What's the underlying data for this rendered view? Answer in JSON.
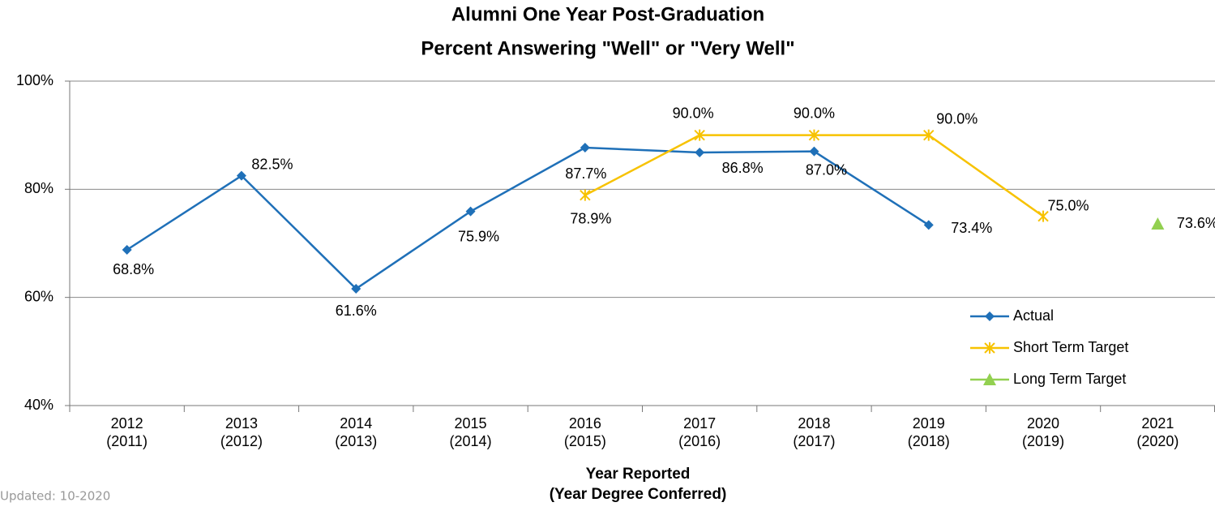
{
  "chart_data": {
    "type": "line",
    "title": [
      "Alumni One Year Post-Graduation",
      "Percent Answering \"Well\" or \"Very Well\""
    ],
    "x_label": [
      "Year Reported",
      "(Year Degree Conferred)"
    ],
    "note": "Updated: 10-2020",
    "categories": [
      [
        "2012",
        "(2011)"
      ],
      [
        "2013",
        "(2012)"
      ],
      [
        "2014",
        "(2013)"
      ],
      [
        "2015",
        "(2014)"
      ],
      [
        "2016",
        "(2015)"
      ],
      [
        "2017",
        "(2016)"
      ],
      [
        "2018",
        "(2017)"
      ],
      [
        "2019",
        "(2018)"
      ],
      [
        "2020",
        "(2019)"
      ],
      [
        "2021",
        "(2020)"
      ]
    ],
    "ylim": [
      40,
      100
    ],
    "yticks": [
      {
        "value": 40,
        "label": "40%"
      },
      {
        "value": 60,
        "label": "60%"
      },
      {
        "value": 80,
        "label": "80%"
      },
      {
        "value": 100,
        "label": "100%"
      }
    ],
    "grid": true,
    "legend": "lower right",
    "series": [
      {
        "name": "Actual",
        "color": "#1f70b8",
        "marker": "diamond",
        "values": [
          68.8,
          82.5,
          61.6,
          75.9,
          87.7,
          86.8,
          87.0,
          73.4,
          null,
          null
        ],
        "value_labels": [
          "68.8%",
          "82.5%",
          "61.6%",
          "75.9%",
          "87.7%",
          "86.8%",
          "87.0%",
          "73.4%",
          null,
          null
        ]
      },
      {
        "name": "Short Term Target",
        "color": "#f7c200",
        "marker": "star",
        "values": [
          null,
          null,
          null,
          null,
          78.9,
          90.0,
          90.0,
          90.0,
          75.0,
          null
        ],
        "value_labels": [
          null,
          null,
          null,
          null,
          "78.9%",
          "90.0%",
          "90.0%",
          "90.0%",
          "75.0%",
          null
        ]
      },
      {
        "name": "Long Term Target",
        "color": "#92d050",
        "marker": "triangle",
        "values": [
          null,
          null,
          null,
          null,
          null,
          null,
          null,
          null,
          null,
          73.6
        ],
        "value_labels": [
          null,
          null,
          null,
          null,
          null,
          null,
          null,
          null,
          null,
          "73.6%"
        ]
      }
    ]
  }
}
